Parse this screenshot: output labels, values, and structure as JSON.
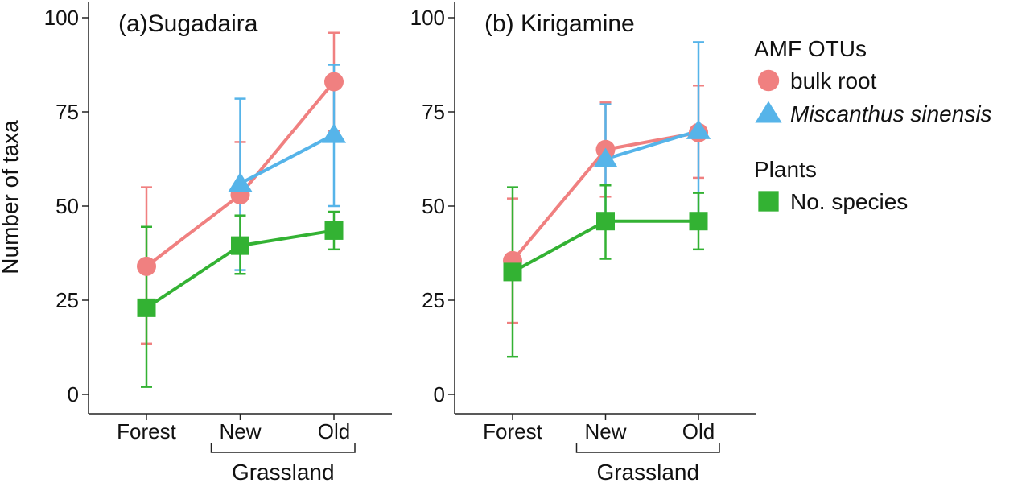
{
  "y_axis_label": "Number of taxa",
  "grassland_label": "Grassland",
  "legend": {
    "groups": [
      {
        "title": "AMF OTUs",
        "items": [
          {
            "label": "bulk root",
            "shape": "circle",
            "color": "#F08080",
            "italic": false
          },
          {
            "label": "Miscanthus sinensis",
            "shape": "triangle",
            "color": "#56B4E9",
            "italic": true
          }
        ]
      },
      {
        "title": "Plants",
        "items": [
          {
            "label": "No. species",
            "shape": "square",
            "color": "#33B233",
            "italic": false
          }
        ]
      }
    ]
  },
  "chart_data": [
    {
      "type": "line",
      "title": "(a)Sugadaira",
      "categories": [
        "Forest",
        "New",
        "Old"
      ],
      "ylim": [
        0,
        100
      ],
      "yticks": [
        0,
        25,
        50,
        75,
        100
      ],
      "grid": false,
      "series": [
        {
          "name": "bulk root",
          "shape": "circle",
          "color": "#F08080",
          "values": [
            34,
            53,
            83
          ],
          "err_low": [
            13.5,
            38.5,
            70
          ],
          "err_high": [
            55,
            67,
            96
          ]
        },
        {
          "name": "Miscanthus sinensis",
          "shape": "triangle",
          "color": "#56B4E9",
          "values": [
            null,
            56,
            69
          ],
          "err_low": [
            null,
            33,
            50
          ],
          "err_high": [
            null,
            78.5,
            87.5
          ]
        },
        {
          "name": "No. species",
          "shape": "square",
          "color": "#33B233",
          "values": [
            23,
            39.5,
            43.5
          ],
          "err_low": [
            2,
            32,
            38.5
          ],
          "err_high": [
            44.5,
            47.5,
            48.5
          ]
        }
      ]
    },
    {
      "type": "line",
      "title": "(b) Kirigamine",
      "categories": [
        "Forest",
        "New",
        "Old"
      ],
      "ylim": [
        0,
        100
      ],
      "yticks": [
        0,
        25,
        50,
        75,
        100
      ],
      "grid": false,
      "series": [
        {
          "name": "bulk root",
          "shape": "circle",
          "color": "#F08080",
          "values": [
            35.5,
            65,
            69.5
          ],
          "err_low": [
            19,
            52.5,
            57.5
          ],
          "err_high": [
            52,
            77.5,
            82
          ]
        },
        {
          "name": "Miscanthus sinensis",
          "shape": "triangle",
          "color": "#56B4E9",
          "values": [
            null,
            62.5,
            70
          ],
          "err_low": [
            null,
            47,
            46
          ],
          "err_high": [
            null,
            77,
            93.5
          ]
        },
        {
          "name": "No. species",
          "shape": "square",
          "color": "#33B233",
          "values": [
            32.5,
            46,
            46
          ],
          "err_low": [
            10,
            36,
            38.5
          ],
          "err_high": [
            55,
            55.5,
            53.5
          ]
        }
      ]
    }
  ]
}
